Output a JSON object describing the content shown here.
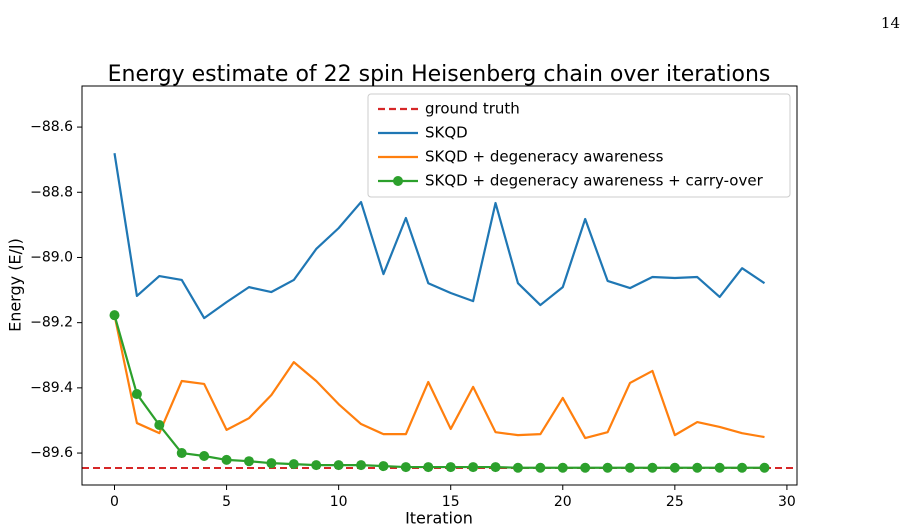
{
  "page_number": "14",
  "chart_data": {
    "type": "line",
    "title": "Energy estimate of 22 spin Heisenberg chain over iterations",
    "x_label": "Iteration",
    "y_label": "Energy (E/J)",
    "x": [
      0,
      1,
      2,
      3,
      4,
      5,
      6,
      7,
      8,
      9,
      10,
      11,
      12,
      13,
      14,
      15,
      16,
      17,
      18,
      19,
      20,
      21,
      22,
      23,
      24,
      25,
      26,
      27,
      28,
      29
    ],
    "reference_line": {
      "name": "ground truth",
      "value": -89.646,
      "color": "#d62728",
      "style": "dashed"
    },
    "series": [
      {
        "name": "SKQD",
        "color": "#1f77b4",
        "marker": "none",
        "values": [
          -88.68,
          -89.118,
          -89.057,
          -89.069,
          -89.186,
          -89.137,
          -89.091,
          -89.106,
          -89.069,
          -88.974,
          -88.91,
          -88.83,
          -89.051,
          -88.879,
          -89.079,
          -89.109,
          -89.134,
          -88.833,
          -89.079,
          -89.146,
          -89.091,
          -88.882,
          -89.072,
          -89.094,
          -89.06,
          -89.063,
          -89.06,
          -89.121,
          -89.033,
          -89.079
        ]
      },
      {
        "name": "SKQD + degeneracy awareness",
        "color": "#ff7f0e",
        "marker": "none",
        "values": [
          -89.177,
          -89.508,
          -89.539,
          -89.379,
          -89.388,
          -89.529,
          -89.493,
          -89.422,
          -89.321,
          -89.379,
          -89.45,
          -89.511,
          -89.542,
          -89.542,
          -89.382,
          -89.526,
          -89.397,
          -89.536,
          -89.545,
          -89.542,
          -89.431,
          -89.554,
          -89.536,
          -89.385,
          -89.348,
          -89.545,
          -89.505,
          -89.52,
          -89.539,
          -89.551
        ]
      },
      {
        "name": "SKQD + degeneracy awareness + carry-over",
        "color": "#2ca02c",
        "marker": "circle",
        "values": [
          -89.177,
          -89.419,
          -89.514,
          -89.6,
          -89.609,
          -89.621,
          -89.625,
          -89.631,
          -89.634,
          -89.637,
          -89.637,
          -89.637,
          -89.64,
          -89.643,
          -89.643,
          -89.643,
          -89.643,
          -89.643,
          -89.645,
          -89.645,
          -89.645,
          -89.645,
          -89.645,
          -89.645,
          -89.645,
          -89.645,
          -89.645,
          -89.645,
          -89.645,
          -89.645
        ]
      }
    ],
    "xlim": [
      -1.45,
      30.45
    ],
    "ylim": [
      -89.698,
      -88.474
    ],
    "xticks": [
      0,
      5,
      10,
      15,
      20,
      25,
      30
    ],
    "yticks": [
      {
        "value": -89.6,
        "label": "−89.6"
      },
      {
        "value": -89.4,
        "label": "−89.4"
      },
      {
        "value": -89.2,
        "label": "−89.2"
      },
      {
        "value": -89.0,
        "label": "−89.0"
      },
      {
        "value": -88.8,
        "label": "−88.8"
      },
      {
        "value": -88.6,
        "label": "−88.6"
      }
    ],
    "grid": false,
    "legend_position": "upper-right"
  }
}
